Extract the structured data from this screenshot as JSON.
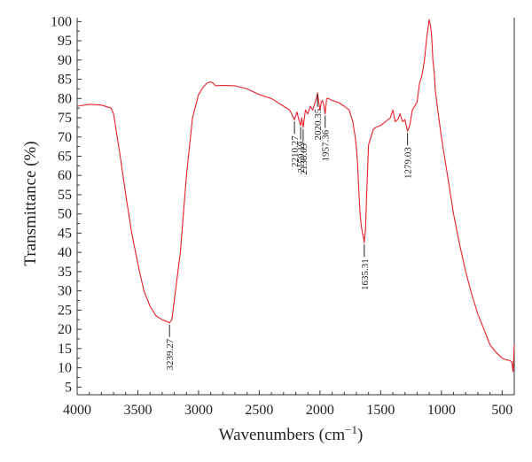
{
  "chart_data": {
    "type": "line",
    "xlabel": "Wavenumbers (cm",
    "xlabel_sup": "−1",
    "xlabel_close": ")",
    "ylabel": "Transmittance (%)",
    "xlim": [
      4000,
      400
    ],
    "ylim": [
      3,
      101
    ],
    "x_reversed": true,
    "grid": false,
    "line_color": "#e8202a",
    "x_ticks": [
      4000,
      3500,
      3000,
      2500,
      2000,
      1500,
      1000,
      500
    ],
    "y_ticks": [
      5,
      10,
      15,
      20,
      25,
      30,
      35,
      40,
      45,
      50,
      55,
      60,
      65,
      70,
      75,
      80,
      85,
      90,
      95,
      100
    ],
    "series": [
      {
        "x": [
          4000,
          3900,
          3800,
          3720,
          3700,
          3650,
          3600,
          3550,
          3500,
          3450,
          3400,
          3350,
          3300,
          3260,
          3239.27,
          3220,
          3150,
          3100,
          3050,
          3000,
          2960,
          2930,
          2900,
          2880,
          2860,
          2800,
          2700,
          2600,
          2500,
          2400,
          2300,
          2250,
          2210.27,
          2190,
          2170,
          2159.19,
          2150,
          2138.69,
          2120,
          2100,
          2080,
          2060,
          2040,
          2030,
          2020.35,
          2010,
          2000,
          1990,
          1980,
          1970,
          1957.36,
          1945,
          1930,
          1900,
          1850,
          1800,
          1760,
          1730,
          1710,
          1700,
          1690,
          1680,
          1670,
          1660,
          1650,
          1640,
          1635.31,
          1625,
          1610,
          1600,
          1580,
          1560,
          1540,
          1500,
          1460,
          1420,
          1400,
          1380,
          1360,
          1340,
          1320,
          1300,
          1279.03,
          1260,
          1240,
          1220,
          1200,
          1180,
          1160,
          1140,
          1120,
          1100,
          1090,
          1080,
          1070,
          1060,
          1050,
          1030,
          1000,
          950,
          900,
          850,
          800,
          750,
          700,
          650,
          600,
          550,
          500,
          460,
          440,
          420,
          410,
          405,
          400
        ],
        "y": [
          78,
          78.5,
          78.3,
          77.5,
          76,
          66,
          55,
          45,
          37,
          30,
          26,
          23.5,
          22.5,
          22,
          21.7,
          22.5,
          40,
          60,
          75,
          81,
          83,
          84,
          84.3,
          84,
          83.3,
          83.4,
          83.3,
          82.5,
          81,
          80,
          78,
          77,
          74.5,
          76.5,
          74,
          73,
          75,
          72.5,
          77,
          76,
          78,
          77,
          79,
          80,
          81.5,
          79,
          77,
          79,
          79.5,
          78.5,
          76,
          80,
          80,
          79.5,
          79,
          78,
          77,
          74,
          70,
          67,
          63,
          56,
          50,
          47,
          45,
          43.5,
          42.5,
          46,
          60,
          68,
          70,
          72,
          72.5,
          73,
          74,
          75,
          77,
          74,
          74.5,
          76,
          74,
          74.5,
          71.5,
          73,
          77,
          78,
          79,
          84,
          86,
          90,
          96,
          100.5,
          99,
          96,
          90,
          87,
          82,
          77,
          70,
          60,
          50,
          42,
          35,
          29,
          24,
          20,
          16,
          14,
          12.5,
          12,
          12,
          11.5,
          9,
          12,
          16
        ]
      }
    ],
    "annotations": [
      {
        "text": "3239.27",
        "x": 3239.27,
        "y": 21.7,
        "side": "below"
      },
      {
        "text": "2210.27",
        "x": 2210.27,
        "y": 74.5,
        "side": "below"
      },
      {
        "text": "2159.19",
        "x": 2159.19,
        "y": 73,
        "side": "below"
      },
      {
        "text": "2138.69",
        "x": 2138.69,
        "y": 72.5,
        "side": "below"
      },
      {
        "text": "2020.35",
        "x": 2020.35,
        "y": 81.5,
        "side": "below"
      },
      {
        "text": "1957.36",
        "x": 1957.36,
        "y": 76,
        "side": "below"
      },
      {
        "text": "1635.31",
        "x": 1635.31,
        "y": 42.5,
        "side": "below"
      },
      {
        "text": "1279.03",
        "x": 1279.03,
        "y": 71.5,
        "side": "below"
      }
    ]
  }
}
